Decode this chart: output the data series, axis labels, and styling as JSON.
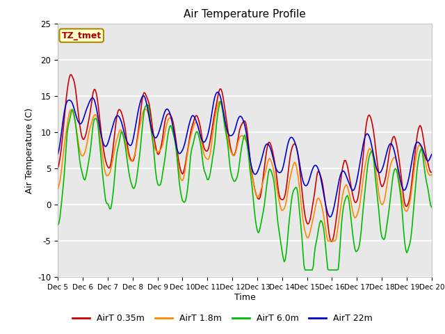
{
  "title": "Air Temperature Profile",
  "xlabel": "Time",
  "ylabel": "Air Temperature (C)",
  "ylim": [
    -10,
    25
  ],
  "xlim": [
    0,
    360
  ],
  "tick_labels": [
    "Dec 5",
    "Dec 6",
    "Dec 7",
    "Dec 8",
    "Dec 9",
    "Dec 10",
    "Dec 11",
    "Dec 12",
    "Dec 13",
    "Dec 14",
    "Dec 15",
    "Dec 16",
    "Dec 17",
    "Dec 18",
    "Dec 19",
    "Dec 20"
  ],
  "tick_positions": [
    0,
    24,
    48,
    72,
    96,
    120,
    144,
    168,
    192,
    216,
    240,
    264,
    288,
    312,
    336,
    360
  ],
  "bg_color": "#e8e8e8",
  "fig_bg": "#ffffff",
  "series": {
    "AirT 0.35m": {
      "color": "#cc0000",
      "lw": 1.2
    },
    "AirT 1.8m": {
      "color": "#ff8800",
      "lw": 1.2
    },
    "AirT 6.0m": {
      "color": "#00bb00",
      "lw": 1.2
    },
    "AirT 22m": {
      "color": "#0000cc",
      "lw": 1.2
    }
  },
  "ann_text": "TZ_tmet",
  "ann_color": "#aa0000",
  "ann_bg": "#ffffcc",
  "ann_border": "#aa8800",
  "yticks": [
    -10,
    -5,
    0,
    5,
    10,
    15,
    20,
    25
  ],
  "grid_color": "#ffffff",
  "legend_labels": [
    "AirT 0.35m",
    "AirT 1.8m",
    "AirT 6.0m",
    "AirT 22m"
  ]
}
